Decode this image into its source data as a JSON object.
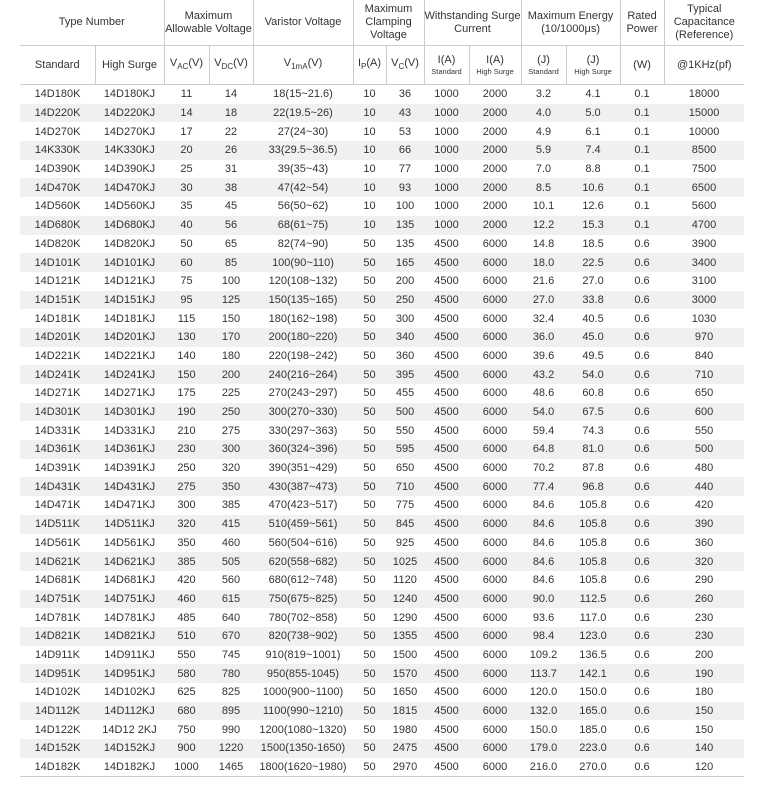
{
  "header_groups": {
    "type_number": "Type Number",
    "max_allowable_voltage": "Maximum Allowable Voltage",
    "varistor_voltage": "Varistor Voltage",
    "max_clamping_voltage": "Maximum Clamping Voltage",
    "withstanding_surge_current": "Withstanding Surge Current",
    "max_energy": "Maximum Energy (10/1000μs)",
    "rated_power": "Rated Power",
    "typical_capacitance": "Typical Capacitance (Reference)"
  },
  "subheaders": {
    "standard": "Standard",
    "high_surge": "High Surge",
    "vac": {
      "main": "V",
      "sub": "AC",
      "unit": "(V)"
    },
    "vdc": {
      "main": "V",
      "sub": "DC",
      "unit": "(V)"
    },
    "v1ma": {
      "main": "V",
      "sub": "1mA",
      "unit": "(V)"
    },
    "ip": {
      "main": "I",
      "sub": "P",
      "unit": "(A)"
    },
    "vc": {
      "main": "V",
      "sub": "C",
      "unit": "(V)"
    },
    "i_std": {
      "main": "I(A)",
      "note": "Standard"
    },
    "i_hs": {
      "main": "I(A)",
      "note": "High Surge"
    },
    "j_std": {
      "main": "(J)",
      "note": "Standard"
    },
    "j_hs": {
      "main": "(J)",
      "note": "High Surge"
    },
    "w": "(W)",
    "cap": "@1KHz(pf)"
  },
  "rows": [
    [
      "14D180K",
      "14D180KJ",
      "11",
      "14",
      "18(15~21.6)",
      "10",
      "36",
      "1000",
      "2000",
      "3.2",
      "4.1",
      "0.1",
      "18000"
    ],
    [
      "14D220K",
      "14D220KJ",
      "14",
      "18",
      "22(19.5~26)",
      "10",
      "43",
      "1000",
      "2000",
      "4.0",
      "5.0",
      "0.1",
      "15000"
    ],
    [
      "14D270K",
      "14D270KJ",
      "17",
      "22",
      "27(24~30)",
      "10",
      "53",
      "1000",
      "2000",
      "4.9",
      "6.1",
      "0.1",
      "10000"
    ],
    [
      "14K330K",
      "14K330KJ",
      "20",
      "26",
      "33(29.5~36.5)",
      "10",
      "66",
      "1000",
      "2000",
      "5.9",
      "7.4",
      "0.1",
      "8500"
    ],
    [
      "14D390K",
      "14D390KJ",
      "25",
      "31",
      "39(35~43)",
      "10",
      "77",
      "1000",
      "2000",
      "7.0",
      "8.8",
      "0.1",
      "7500"
    ],
    [
      "14D470K",
      "14D470KJ",
      "30",
      "38",
      "47(42~54)",
      "10",
      "93",
      "1000",
      "2000",
      "8.5",
      "10.6",
      "0.1",
      "6500"
    ],
    [
      "14D560K",
      "14D560KJ",
      "35",
      "45",
      "56(50~62)",
      "10",
      "100",
      "1000",
      "2000",
      "10.1",
      "12.6",
      "0.1",
      "5600"
    ],
    [
      "14D680K",
      "14D680KJ",
      "40",
      "56",
      "68(61~75)",
      "10",
      "135",
      "1000",
      "2000",
      "12.2",
      "15.3",
      "0.1",
      "4700"
    ],
    [
      "14D820K",
      "14D820KJ",
      "50",
      "65",
      "82(74~90)",
      "50",
      "135",
      "4500",
      "6000",
      "14.8",
      "18.5",
      "0.6",
      "3900"
    ],
    [
      "14D101K",
      "14D101KJ",
      "60",
      "85",
      "100(90~110)",
      "50",
      "165",
      "4500",
      "6000",
      "18.0",
      "22.5",
      "0.6",
      "3400"
    ],
    [
      "14D121K",
      "14D121KJ",
      "75",
      "100",
      "120(108~132)",
      "50",
      "200",
      "4500",
      "6000",
      "21.6",
      "27.0",
      "0.6",
      "3100"
    ],
    [
      "14D151K",
      "14D151KJ",
      "95",
      "125",
      "150(135~165)",
      "50",
      "250",
      "4500",
      "6000",
      "27.0",
      "33.8",
      "0.6",
      "3000"
    ],
    [
      "14D181K",
      "14D181KJ",
      "115",
      "150",
      "180(162~198)",
      "50",
      "300",
      "4500",
      "6000",
      "32.4",
      "40.5",
      "0.6",
      "1030"
    ],
    [
      "14D201K",
      "14D201KJ",
      "130",
      "170",
      "200(180~220)",
      "50",
      "340",
      "4500",
      "6000",
      "36.0",
      "45.0",
      "0.6",
      "970"
    ],
    [
      "14D221K",
      "14D221KJ",
      "140",
      "180",
      "220(198~242)",
      "50",
      "360",
      "4500",
      "6000",
      "39.6",
      "49.5",
      "0.6",
      "840"
    ],
    [
      "14D241K",
      "14D241KJ",
      "150",
      "200",
      "240(216~264)",
      "50",
      "395",
      "4500",
      "6000",
      "43.2",
      "54.0",
      "0.6",
      "710"
    ],
    [
      "14D271K",
      "14D271KJ",
      "175",
      "225",
      "270(243~297)",
      "50",
      "455",
      "4500",
      "6000",
      "48.6",
      "60.8",
      "0.6",
      "650"
    ],
    [
      "14D301K",
      "14D301KJ",
      "190",
      "250",
      "300(270~330)",
      "50",
      "500",
      "4500",
      "6000",
      "54.0",
      "67.5",
      "0.6",
      "600"
    ],
    [
      "14D331K",
      "14D331KJ",
      "210",
      "275",
      "330(297~363)",
      "50",
      "550",
      "4500",
      "6000",
      "59.4",
      "74.3",
      "0.6",
      "550"
    ],
    [
      "14D361K",
      "14D361KJ",
      "230",
      "300",
      "360(324~396)",
      "50",
      "595",
      "4500",
      "6000",
      "64.8",
      "81.0",
      "0.6",
      "500"
    ],
    [
      "14D391K",
      "14D391KJ",
      "250",
      "320",
      "390(351~429)",
      "50",
      "650",
      "4500",
      "6000",
      "70.2",
      "87.8",
      "0.6",
      "480"
    ],
    [
      "14D431K",
      "14D431KJ",
      "275",
      "350",
      "430(387~473)",
      "50",
      "710",
      "4500",
      "6000",
      "77.4",
      "96.8",
      "0.6",
      "440"
    ],
    [
      "14D471K",
      "14D471KJ",
      "300",
      "385",
      "470(423~517)",
      "50",
      "775",
      "4500",
      "6000",
      "84.6",
      "105.8",
      "0.6",
      "420"
    ],
    [
      "14D511K",
      "14D511KJ",
      "320",
      "415",
      "510(459~561)",
      "50",
      "845",
      "4500",
      "6000",
      "84.6",
      "105.8",
      "0.6",
      "390"
    ],
    [
      "14D561K",
      "14D561KJ",
      "350",
      "460",
      "560(504~616)",
      "50",
      "925",
      "4500",
      "6000",
      "84.6",
      "105.8",
      "0.6",
      "360"
    ],
    [
      "14D621K",
      "14D621KJ",
      "385",
      "505",
      "620(558~682)",
      "50",
      "1025",
      "4500",
      "6000",
      "84.6",
      "105.8",
      "0.6",
      "320"
    ],
    [
      "14D681K",
      "14D681KJ",
      "420",
      "560",
      "680(612~748)",
      "50",
      "1120",
      "4500",
      "6000",
      "84.6",
      "105.8",
      "0.6",
      "290"
    ],
    [
      "14D751K",
      "14D751KJ",
      "460",
      "615",
      "750(675~825)",
      "50",
      "1240",
      "4500",
      "6000",
      "90.0",
      "112.5",
      "0.6",
      "260"
    ],
    [
      "14D781K",
      "14D781KJ",
      "485",
      "640",
      "780(702~858)",
      "50",
      "1290",
      "4500",
      "6000",
      "93.6",
      "117.0",
      "0.6",
      "230"
    ],
    [
      "14D821K",
      "14D821KJ",
      "510",
      "670",
      "820(738~902)",
      "50",
      "1355",
      "4500",
      "6000",
      "98.4",
      "123.0",
      "0.6",
      "230"
    ],
    [
      "14D911K",
      "14D911KJ",
      "550",
      "745",
      "910(819~1001)",
      "50",
      "1500",
      "4500",
      "6000",
      "109.2",
      "136.5",
      "0.6",
      "200"
    ],
    [
      "14D951K",
      "14D951KJ",
      "580",
      "780",
      "950(855-1045)",
      "50",
      "1570",
      "4500",
      "6000",
      "113.7",
      "142.1",
      "0.6",
      "190"
    ],
    [
      "14D102K",
      "14D102KJ",
      "625",
      "825",
      "1000(900~1100)",
      "50",
      "1650",
      "4500",
      "6000",
      "120.0",
      "150.0",
      "0.6",
      "180"
    ],
    [
      "14D112K",
      "14D112KJ",
      "680",
      "895",
      "1100(990~1210)",
      "50",
      "1815",
      "4500",
      "6000",
      "132.0",
      "165.0",
      "0.6",
      "150"
    ],
    [
      "14D122K",
      "14D12 2KJ",
      "750",
      "990",
      "1200(1080~1320)",
      "50",
      "1980",
      "4500",
      "6000",
      "150.0",
      "185.0",
      "0.6",
      "150"
    ],
    [
      "14D152K",
      "14D152KJ",
      "900",
      "1220",
      "1500(1350-1650)",
      "50",
      "2475",
      "4500",
      "6000",
      "179.0",
      "223.0",
      "0.6",
      "140"
    ],
    [
      "14D182K",
      "14D182KJ",
      "1000",
      "1465",
      "1800(1620~1980)",
      "50",
      "2970",
      "4500",
      "6000",
      "216.0",
      "270.0",
      "0.6",
      "120"
    ]
  ]
}
